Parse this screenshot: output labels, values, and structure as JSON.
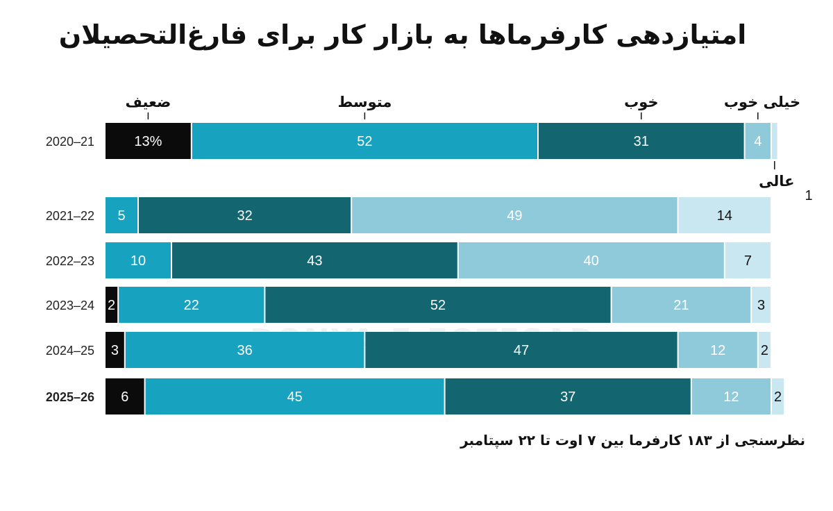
{
  "chart_data": {
    "type": "bar",
    "orientation": "horizontal",
    "stacked": true,
    "title": "امتیازدهی کارفرماها به بازار کار برای فارغ‌التحصیلان",
    "note": "نظرسنجی از ۱۸۳ کارفرما بین ۷ اوت تا ۲۲ سپتامبر",
    "watermark": "DONYA-E-EQTESAD",
    "unit": "%",
    "categories": [
      "2020–21",
      "2021–22",
      "2022–23",
      "2023–24",
      "2024–25",
      "2025–26"
    ],
    "highlight_category": "2025–26",
    "series": [
      {
        "name": "ضعیف",
        "color": "#0b0b0b",
        "values": [
          13,
          0,
          0,
          2,
          3,
          6
        ]
      },
      {
        "name": "متوسط",
        "color": "#17a3c0",
        "values": [
          52,
          5,
          10,
          22,
          36,
          45
        ]
      },
      {
        "name": "خوب",
        "color": "#136670",
        "values": [
          31,
          32,
          43,
          52,
          47,
          37
        ]
      },
      {
        "name": "خیلی خوب",
        "color": "#8fcada",
        "values": [
          4,
          49,
          40,
          21,
          12,
          12
        ]
      },
      {
        "name": "عالی",
        "color": "#c8e7f1",
        "values": [
          1,
          14,
          7,
          3,
          2,
          2
        ]
      }
    ],
    "legend": "labels above first bar"
  }
}
